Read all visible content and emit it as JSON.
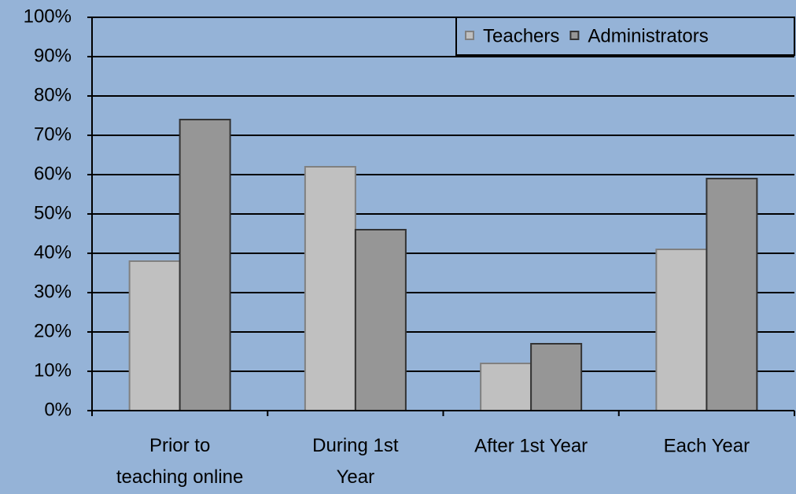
{
  "chart_data": {
    "type": "bar",
    "categories": [
      "Prior to teaching online",
      "During 1st Year",
      "After 1st Year",
      "Each Year"
    ],
    "series": [
      {
        "name": "Teachers",
        "color": "#c0c0c0",
        "values": [
          38,
          62,
          12,
          41
        ]
      },
      {
        "name": "Administrators",
        "color": "#969696",
        "values": [
          74,
          46,
          17,
          59
        ]
      }
    ],
    "ylim": [
      0,
      100
    ],
    "yticks": [
      {
        "value": 0,
        "label": "0%"
      },
      {
        "value": 10,
        "label": "10%"
      },
      {
        "value": 20,
        "label": "20%"
      },
      {
        "value": 30,
        "label": "30%"
      },
      {
        "value": 40,
        "label": "40%"
      },
      {
        "value": 50,
        "label": "50%"
      },
      {
        "value": 60,
        "label": "60%"
      },
      {
        "value": 70,
        "label": "70%"
      },
      {
        "value": 80,
        "label": "80%"
      },
      {
        "value": 90,
        "label": "90%"
      },
      {
        "value": 100,
        "label": "100%"
      }
    ],
    "grid": true,
    "legend": "top-right"
  }
}
